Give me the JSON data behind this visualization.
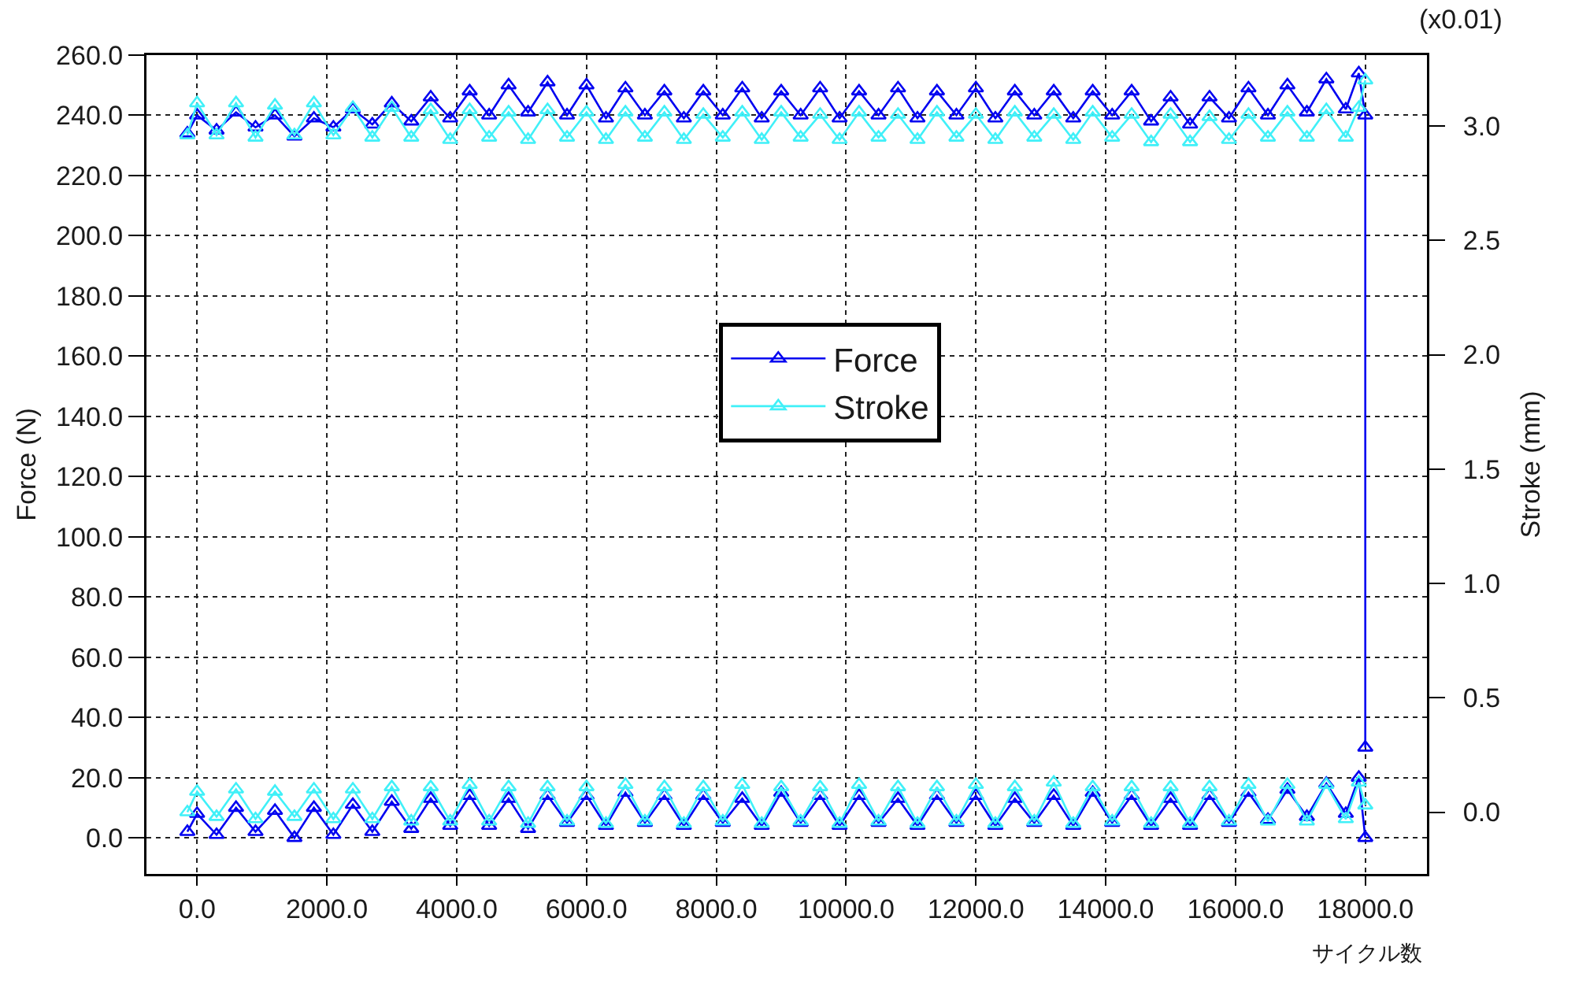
{
  "chart_data": {
    "type": "line",
    "xlabel": "サイクル数",
    "ylabel": "Force (N)",
    "y2label": "Stroke (mm)",
    "annotations": [
      "(x0.01)"
    ],
    "series": [
      {
        "name": "Force",
        "color": "#0000f0",
        "x": [
          -150,
          0,
          300,
          600,
          900,
          1200,
          1500,
          1800,
          2100,
          2400,
          2700,
          3000,
          3300,
          3600,
          3900,
          4200,
          4500,
          4800,
          5100,
          5400,
          5700,
          6000,
          6300,
          6600,
          6900,
          7200,
          7500,
          7800,
          8100,
          8400,
          8700,
          9000,
          9300,
          9600,
          9900,
          10200,
          10500,
          10800,
          11100,
          11400,
          11700,
          12000,
          12300,
          12600,
          12900,
          13200,
          13500,
          13800,
          14100,
          14400,
          14700,
          15000,
          15300,
          15600,
          15900,
          16200,
          16500,
          16800,
          17100,
          17400,
          17700,
          17900,
          18000,
          18000
        ],
        "values": [
          234,
          240,
          235,
          241,
          236,
          240,
          233,
          239,
          236,
          242,
          237,
          244,
          238,
          246,
          239,
          248,
          240,
          250,
          241,
          251,
          240,
          250,
          239,
          249,
          240,
          248,
          239,
          248,
          240,
          249,
          239,
          248,
          240,
          249,
          239,
          248,
          240,
          249,
          239,
          248,
          240,
          249,
          239,
          248,
          240,
          248,
          239,
          248,
          240,
          248,
          238,
          246,
          237,
          246,
          239,
          249,
          240,
          250,
          241,
          252,
          242,
          254,
          240,
          30
        ]
      },
      {
        "color": "#0000f0",
        "x": [
          -150,
          0,
          300,
          600,
          900,
          1200,
          1500,
          1800,
          2100,
          2400,
          2700,
          3000,
          3300,
          3600,
          3900,
          4200,
          4500,
          4800,
          5100,
          5400,
          5700,
          6000,
          6300,
          6600,
          6900,
          7200,
          7500,
          7800,
          8100,
          8400,
          8700,
          9000,
          9300,
          9600,
          9900,
          10200,
          10500,
          10800,
          11100,
          11400,
          11700,
          12000,
          12300,
          12600,
          12900,
          13200,
          13500,
          13800,
          14100,
          14400,
          14700,
          15000,
          15300,
          15600,
          15900,
          16200,
          16500,
          16800,
          17100,
          17400,
          17700,
          17900,
          18000
        ],
        "values": [
          2,
          8,
          1,
          10,
          2,
          9,
          0,
          10,
          1,
          11,
          2,
          12,
          3,
          13,
          4,
          14,
          4,
          13,
          3,
          14,
          5,
          14,
          4,
          15,
          5,
          14,
          4,
          14,
          5,
          13,
          4,
          15,
          5,
          14,
          4,
          14,
          5,
          13,
          4,
          14,
          5,
          14,
          4,
          13,
          5,
          14,
          4,
          15,
          5,
          14,
          4,
          13,
          4,
          14,
          5,
          15,
          6,
          16,
          7,
          18,
          8,
          20,
          0
        ]
      },
      {
        "name": "Stroke",
        "color": "#40f0f8",
        "axis": "y2",
        "x": [
          -150,
          0,
          300,
          600,
          900,
          1200,
          1500,
          1800,
          2100,
          2400,
          2700,
          3000,
          3300,
          3600,
          3900,
          4200,
          4500,
          4800,
          5100,
          5400,
          5700,
          6000,
          6300,
          6600,
          6900,
          7200,
          7500,
          7800,
          8100,
          8400,
          8700,
          9000,
          9300,
          9600,
          9900,
          10200,
          10500,
          10800,
          11100,
          11400,
          11700,
          12000,
          12300,
          12600,
          12900,
          13200,
          13500,
          13800,
          14100,
          14400,
          14700,
          15000,
          15300,
          15600,
          15900,
          16200,
          16500,
          16800,
          17100,
          17400,
          17700,
          17900,
          18000
        ],
        "values": [
          2.96,
          3.1,
          2.96,
          3.1,
          2.95,
          3.09,
          2.96,
          3.1,
          2.96,
          3.08,
          2.95,
          3.08,
          2.95,
          3.07,
          2.94,
          3.07,
          2.95,
          3.06,
          2.94,
          3.07,
          2.95,
          3.06,
          2.94,
          3.06,
          2.95,
          3.06,
          2.94,
          3.05,
          2.95,
          3.06,
          2.94,
          3.06,
          2.95,
          3.05,
          2.94,
          3.06,
          2.95,
          3.05,
          2.94,
          3.06,
          2.95,
          3.05,
          2.94,
          3.06,
          2.95,
          3.05,
          2.94,
          3.06,
          2.95,
          3.05,
          2.93,
          3.05,
          2.93,
          3.04,
          2.94,
          3.05,
          2.95,
          3.06,
          2.95,
          3.07,
          2.95,
          3.08,
          3.2
        ]
      },
      {
        "color": "#40f0f8",
        "axis": "y2",
        "x": [
          -150,
          0,
          300,
          600,
          900,
          1200,
          1500,
          1800,
          2100,
          2400,
          2700,
          3000,
          3300,
          3600,
          3900,
          4200,
          4500,
          4800,
          5100,
          5400,
          5700,
          6000,
          6300,
          6600,
          6900,
          7200,
          7500,
          7800,
          8100,
          8400,
          8700,
          9000,
          9300,
          9600,
          9900,
          10200,
          10500,
          10800,
          11100,
          11400,
          11700,
          12000,
          12300,
          12600,
          12900,
          13200,
          13500,
          13800,
          14100,
          14400,
          14700,
          15000,
          15300,
          15600,
          15900,
          16200,
          16500,
          16800,
          17100,
          17400,
          17700,
          17900,
          18000
        ],
        "values": [
          0.0,
          0.09,
          -0.02,
          0.1,
          -0.03,
          0.09,
          -0.02,
          0.1,
          -0.03,
          0.1,
          -0.03,
          0.11,
          -0.04,
          0.11,
          -0.04,
          0.12,
          -0.04,
          0.11,
          -0.05,
          0.11,
          -0.04,
          0.11,
          -0.05,
          0.12,
          -0.04,
          0.11,
          -0.05,
          0.11,
          -0.04,
          0.12,
          -0.05,
          0.11,
          -0.04,
          0.11,
          -0.05,
          0.12,
          -0.04,
          0.11,
          -0.05,
          0.11,
          -0.04,
          0.12,
          -0.05,
          0.11,
          -0.04,
          0.13,
          -0.05,
          0.11,
          -0.04,
          0.11,
          -0.05,
          0.11,
          -0.05,
          0.11,
          -0.04,
          0.12,
          -0.04,
          0.12,
          -0.04,
          0.12,
          -0.03,
          0.13,
          0.03
        ]
      }
    ],
    "xlim": [
      -780,
      18950
    ],
    "xticks": [
      {
        "value": 0,
        "label": "0.0"
      },
      {
        "value": 2000,
        "label": "2000.0"
      },
      {
        "value": 4000,
        "label": "4000.0"
      },
      {
        "value": 6000,
        "label": "6000.0"
      },
      {
        "value": 8000,
        "label": "8000.0"
      },
      {
        "value": 10000,
        "label": "10000.0"
      },
      {
        "value": 12000,
        "label": "12000.0"
      },
      {
        "value": 14000,
        "label": "14000.0"
      },
      {
        "value": 16000,
        "label": "16000.0"
      },
      {
        "value": 18000,
        "label": "18000.0"
      }
    ],
    "ylim": [
      -12,
      260
    ],
    "yticks": [
      {
        "value": 0,
        "label": "0.0"
      },
      {
        "value": 20,
        "label": "20.0"
      },
      {
        "value": 40,
        "label": "40.0"
      },
      {
        "value": 60,
        "label": "60.0"
      },
      {
        "value": 80,
        "label": "80.0"
      },
      {
        "value": 100,
        "label": "100.0"
      },
      {
        "value": 120,
        "label": "120.0"
      },
      {
        "value": 140,
        "label": "140.0"
      },
      {
        "value": 160,
        "label": "160.0"
      },
      {
        "value": 180,
        "label": "180.0"
      },
      {
        "value": 200,
        "label": "200.0"
      },
      {
        "value": 220,
        "label": "220.0"
      },
      {
        "value": 240,
        "label": "240.0"
      },
      {
        "value": 260,
        "label": "260.0"
      }
    ],
    "y2lim": [
      -0.27,
      3.31
    ],
    "y2ticks": [
      {
        "value": 0,
        "label": "0.0"
      },
      {
        "value": 0.5,
        "label": "0.5"
      },
      {
        "value": 1,
        "label": "1.0"
      },
      {
        "value": 1.5,
        "label": "1.5"
      },
      {
        "value": 2,
        "label": "2.0"
      },
      {
        "value": 2.5,
        "label": "2.5"
      },
      {
        "value": 3,
        "label": "3.0"
      }
    ],
    "grid": true,
    "legend": "center",
    "marker": "triangle",
    "line_style": "solid"
  }
}
